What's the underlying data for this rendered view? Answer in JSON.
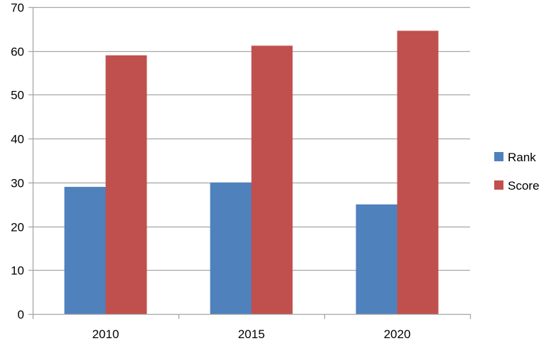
{
  "chart_data": {
    "type": "bar",
    "categories": [
      "2010",
      "2015",
      "2020"
    ],
    "series": [
      {
        "name": "Rank",
        "values": [
          29,
          30,
          25
        ],
        "color": "#4f81bd"
      },
      {
        "name": "Score",
        "values": [
          59,
          61.2,
          64.6
        ],
        "color": "#c0504d"
      }
    ],
    "title": "",
    "xlabel": "",
    "ylabel": "",
    "ylim": [
      0,
      70
    ],
    "yticks": [
      0,
      10,
      20,
      30,
      40,
      50,
      60,
      70
    ],
    "grid": true,
    "legend": "right",
    "gridline_color": "#a6a6a6",
    "axis_color": "#a6a6a6"
  }
}
